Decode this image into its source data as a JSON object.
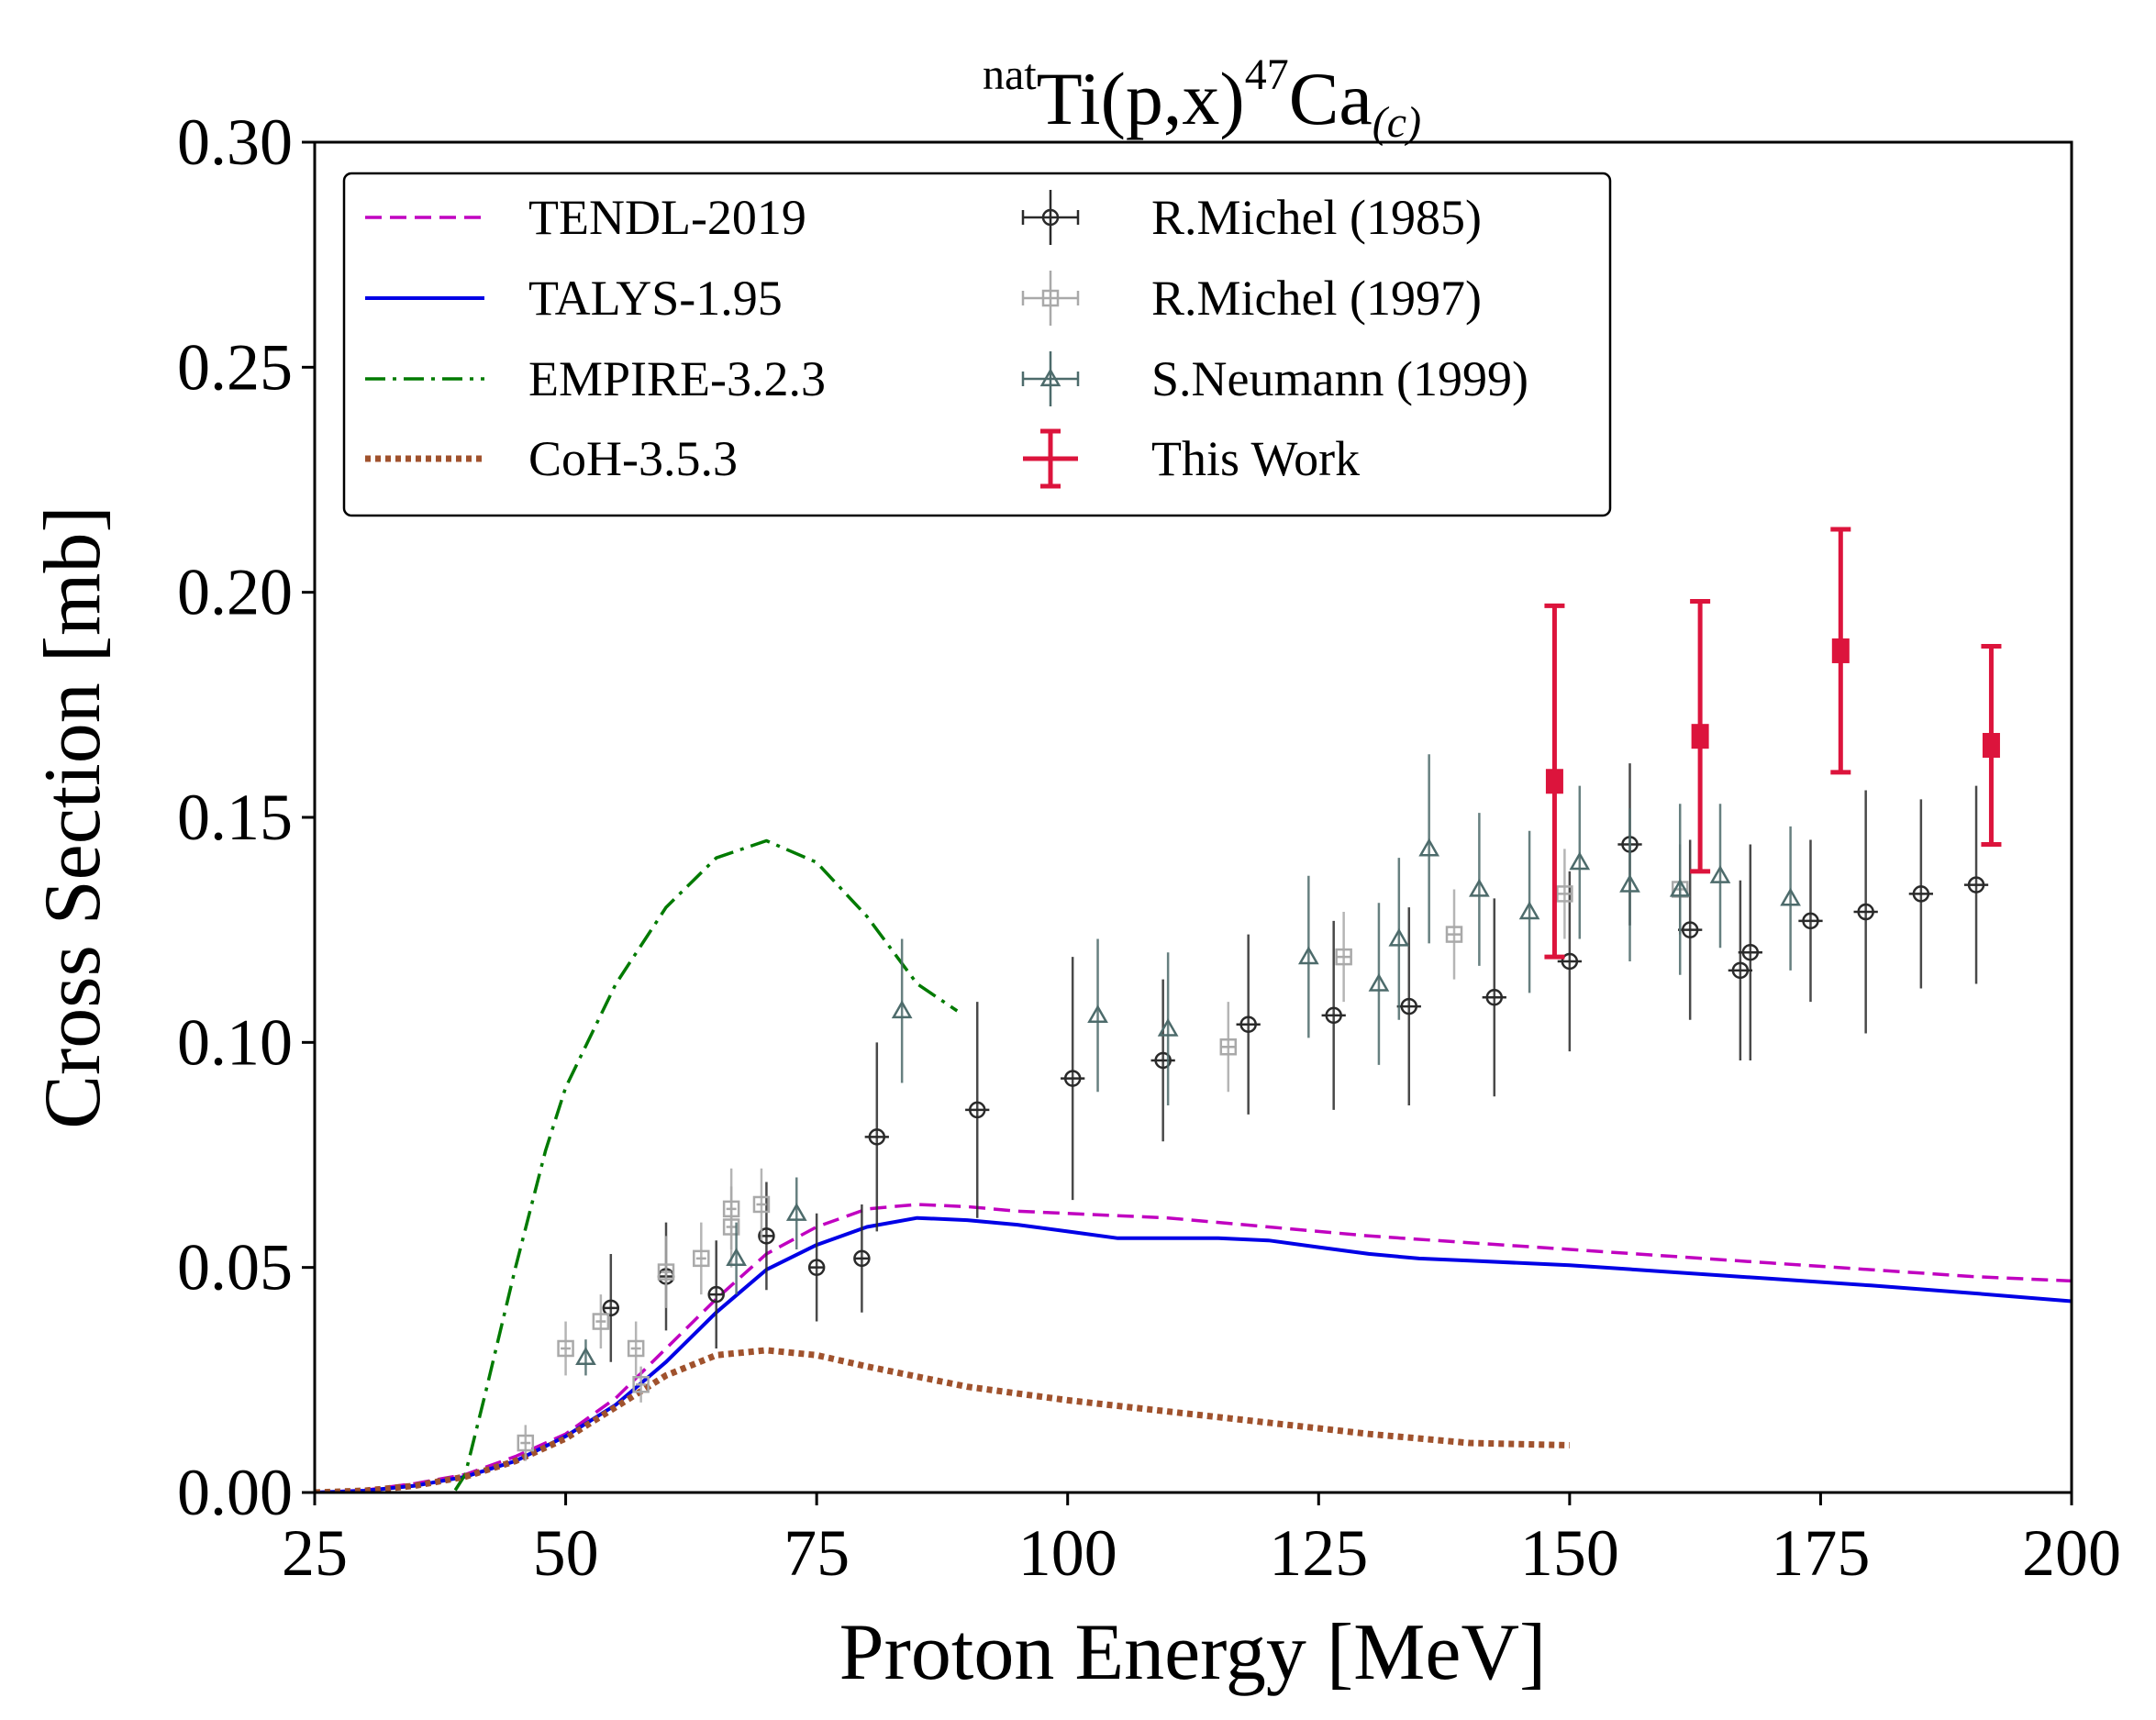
{
  "chart_data": {
    "type": "line",
    "title": {
      "pre_sup": "nat",
      "main": "Ti(p,x)",
      "mass_sup": "47",
      "element": "Ca",
      "sub": "(c)"
    },
    "xlabel": "Proton Energy [MeV]",
    "ylabel": "Cross Section [mb]",
    "xlim": [
      25,
      200
    ],
    "ylim": [
      0,
      0.3
    ],
    "xticks": [
      "25",
      "50",
      "75",
      "100",
      "125",
      "150",
      "175",
      "200"
    ],
    "yticks": [
      "0.00",
      "0.05",
      "0.10",
      "0.15",
      "0.20",
      "0.25",
      "0.30"
    ],
    "legend_position": "upper-left",
    "model_series": [
      {
        "name": "TENDL-2019",
        "color": "#c000c0",
        "style": "dashed",
        "x": [
          25,
          30,
          35,
          40,
          45,
          50,
          55,
          60,
          65,
          70,
          75,
          80,
          85,
          90,
          95,
          100,
          110,
          120,
          130,
          140,
          150,
          160,
          170,
          180,
          190,
          200
        ],
        "y": [
          0,
          0.0005,
          0.002,
          0.004,
          0.008,
          0.013,
          0.021,
          0.032,
          0.043,
          0.053,
          0.059,
          0.063,
          0.064,
          0.0635,
          0.0625,
          0.062,
          0.061,
          0.059,
          0.057,
          0.0555,
          0.054,
          0.0525,
          0.051,
          0.0495,
          0.048,
          0.047
        ]
      },
      {
        "name": "TALYS-1.95",
        "color": "#0000e6",
        "style": "solid",
        "x": [
          25,
          30,
          35,
          40,
          45,
          50,
          55,
          60,
          65,
          70,
          75,
          80,
          85,
          90,
          95,
          100,
          105,
          110,
          115,
          120,
          125,
          130,
          135,
          140,
          150,
          160,
          170,
          180,
          190,
          200
        ],
        "y": [
          0,
          0.0004,
          0.0015,
          0.0035,
          0.007,
          0.0125,
          0.0195,
          0.029,
          0.04,
          0.0495,
          0.055,
          0.059,
          0.061,
          0.0605,
          0.0595,
          0.058,
          0.0565,
          0.0565,
          0.0565,
          0.056,
          0.0545,
          0.053,
          0.052,
          0.0515,
          0.0505,
          0.049,
          0.0475,
          0.046,
          0.0443,
          0.0425
        ]
      },
      {
        "name": "EMPIRE-3.2.3",
        "color": "#007a00",
        "style": "dashdot",
        "x": [
          39,
          40,
          42,
          45,
          48,
          50,
          55,
          60,
          65,
          70,
          75,
          80,
          85,
          89
        ],
        "y": [
          0.0005,
          0.004,
          0.022,
          0.05,
          0.076,
          0.09,
          0.113,
          0.13,
          0.141,
          0.1448,
          0.14,
          0.128,
          0.113,
          0.107
        ]
      },
      {
        "name": "CoH-3.5.3",
        "color": "#a0522d",
        "style": "dotted",
        "x": [
          25,
          30,
          35,
          40,
          45,
          50,
          55,
          60,
          65,
          70,
          75,
          80,
          90,
          100,
          110,
          120,
          130,
          140,
          150
        ],
        "y": [
          0,
          0.0004,
          0.0015,
          0.0035,
          0.007,
          0.012,
          0.019,
          0.026,
          0.0305,
          0.0316,
          0.0305,
          0.028,
          0.0235,
          0.0205,
          0.018,
          0.0155,
          0.013,
          0.011,
          0.0105
        ]
      }
    ],
    "data_series": [
      {
        "name": "R.Michel (1985)",
        "color": "#2a2a2a",
        "marker": "circle",
        "points": [
          {
            "x": 54.5,
            "y": 0.041,
            "yerr": 0.012,
            "xerr": 0.8
          },
          {
            "x": 60,
            "y": 0.048,
            "yerr": 0.012,
            "xerr": 0.8
          },
          {
            "x": 65,
            "y": 0.044,
            "yerr": 0.012,
            "xerr": 0.8
          },
          {
            "x": 70,
            "y": 0.057,
            "yerr": 0.012,
            "xerr": 0.8
          },
          {
            "x": 75,
            "y": 0.05,
            "yerr": 0.012,
            "xerr": 0.8
          },
          {
            "x": 79.5,
            "y": 0.052,
            "yerr": 0.012,
            "xerr": 0.8
          },
          {
            "x": 81,
            "y": 0.079,
            "yerr": 0.021,
            "xerr": 1.2
          },
          {
            "x": 91,
            "y": 0.085,
            "yerr": 0.024,
            "xerr": 1.2
          },
          {
            "x": 100.5,
            "y": 0.092,
            "yerr": 0.027,
            "xerr": 1.2
          },
          {
            "x": 109.5,
            "y": 0.096,
            "yerr": 0.018,
            "xerr": 1.2
          },
          {
            "x": 118,
            "y": 0.104,
            "yerr": 0.02,
            "xerr": 1.2
          },
          {
            "x": 126.5,
            "y": 0.106,
            "yerr": 0.021,
            "xerr": 1.2
          },
          {
            "x": 134,
            "y": 0.108,
            "yerr": 0.022,
            "xerr": 1.2
          },
          {
            "x": 142.5,
            "y": 0.11,
            "yerr": 0.022,
            "xerr": 1.2
          },
          {
            "x": 150,
            "y": 0.118,
            "yerr": 0.02,
            "xerr": 1.2
          },
          {
            "x": 156,
            "y": 0.144,
            "yerr": 0.018,
            "xerr": 1.2
          },
          {
            "x": 162,
            "y": 0.125,
            "yerr": 0.02,
            "xerr": 1.2
          },
          {
            "x": 167,
            "y": 0.116,
            "yerr": 0.02,
            "xerr": 1.2
          },
          {
            "x": 168,
            "y": 0.12,
            "yerr": 0.024,
            "xerr": 1.2
          },
          {
            "x": 174,
            "y": 0.127,
            "yerr": 0.018,
            "xerr": 1.2
          },
          {
            "x": 179.5,
            "y": 0.129,
            "yerr": 0.027,
            "xerr": 1.2
          },
          {
            "x": 185,
            "y": 0.133,
            "yerr": 0.021,
            "xerr": 1.2
          },
          {
            "x": 190.5,
            "y": 0.135,
            "yerr": 0.022,
            "xerr": 1.2
          }
        ]
      },
      {
        "name": "R.Michel (1997)",
        "color": "#a9a9a9",
        "marker": "square",
        "points": [
          {
            "x": 46,
            "y": 0.011,
            "yerr": 0.004,
            "xerr": 0.5
          },
          {
            "x": 50,
            "y": 0.032,
            "yerr": 0.006,
            "xerr": 0.5
          },
          {
            "x": 53.5,
            "y": 0.038,
            "yerr": 0.006,
            "xerr": 0.5
          },
          {
            "x": 57,
            "y": 0.032,
            "yerr": 0.006,
            "xerr": 0.5
          },
          {
            "x": 57.5,
            "y": 0.024,
            "yerr": 0.004,
            "xerr": 0.5
          },
          {
            "x": 60,
            "y": 0.049,
            "yerr": 0.008,
            "xerr": 0.5
          },
          {
            "x": 63.5,
            "y": 0.052,
            "yerr": 0.008,
            "xerr": 0.5
          },
          {
            "x": 66.5,
            "y": 0.059,
            "yerr": 0.009,
            "xerr": 0.5
          },
          {
            "x": 66.5,
            "y": 0.063,
            "yerr": 0.009,
            "xerr": 0.5
          },
          {
            "x": 69.5,
            "y": 0.064,
            "yerr": 0.008,
            "xerr": 0.5
          },
          {
            "x": 116,
            "y": 0.099,
            "yerr": 0.01,
            "xerr": 0.8
          },
          {
            "x": 127.5,
            "y": 0.119,
            "yerr": 0.01,
            "xerr": 0.8
          },
          {
            "x": 138.5,
            "y": 0.124,
            "yerr": 0.01,
            "xerr": 0.8
          },
          {
            "x": 149.5,
            "y": 0.133,
            "yerr": 0.01,
            "xerr": 0.8
          },
          {
            "x": 161,
            "y": 0.134,
            "yerr": 0.01,
            "xerr": 0.8
          }
        ]
      },
      {
        "name": "S.Neumann (1999)",
        "color": "#4d6b6b",
        "marker": "triangle",
        "points": [
          {
            "x": 52,
            "y": 0.03,
            "yerr": 0.004,
            "xerr": 0
          },
          {
            "x": 67,
            "y": 0.052,
            "yerr": 0.008,
            "xerr": 0
          },
          {
            "x": 73,
            "y": 0.062,
            "yerr": 0.008,
            "xerr": 0
          },
          {
            "x": 83.5,
            "y": 0.107,
            "yerr": 0.016,
            "xerr": 0
          },
          {
            "x": 103,
            "y": 0.106,
            "yerr": 0.017,
            "xerr": 0
          },
          {
            "x": 110,
            "y": 0.103,
            "yerr": 0.017,
            "xerr": 0
          },
          {
            "x": 124,
            "y": 0.119,
            "yerr": 0.018,
            "xerr": 0
          },
          {
            "x": 131,
            "y": 0.113,
            "yerr": 0.018,
            "xerr": 0
          },
          {
            "x": 133,
            "y": 0.123,
            "yerr": 0.018,
            "xerr": 0
          },
          {
            "x": 136,
            "y": 0.143,
            "yerr": 0.021,
            "xerr": 0
          },
          {
            "x": 141,
            "y": 0.134,
            "yerr": 0.017,
            "xerr": 0
          },
          {
            "x": 146,
            "y": 0.129,
            "yerr": 0.018,
            "xerr": 0
          },
          {
            "x": 151,
            "y": 0.14,
            "yerr": 0.017,
            "xerr": 0
          },
          {
            "x": 156,
            "y": 0.135,
            "yerr": 0.017,
            "xerr": 0
          },
          {
            "x": 161,
            "y": 0.134,
            "yerr": 0.019,
            "xerr": 0
          },
          {
            "x": 165,
            "y": 0.137,
            "yerr": 0.016,
            "xerr": 0
          },
          {
            "x": 172,
            "y": 0.132,
            "yerr": 0.016,
            "xerr": 0
          }
        ]
      },
      {
        "name": "This Work",
        "color": "#dc143c",
        "marker": "square-filled",
        "points": [
          {
            "x": 148.5,
            "y": 0.158,
            "yerr": 0.039,
            "xerr": 0.7
          },
          {
            "x": 163,
            "y": 0.168,
            "yerr": 0.03,
            "xerr": 0.7
          },
          {
            "x": 177,
            "y": 0.187,
            "yerr": 0.027,
            "xerr": 0.7
          },
          {
            "x": 192,
            "y": 0.166,
            "yerr": 0.022,
            "xerr": 0.7
          }
        ]
      }
    ]
  }
}
